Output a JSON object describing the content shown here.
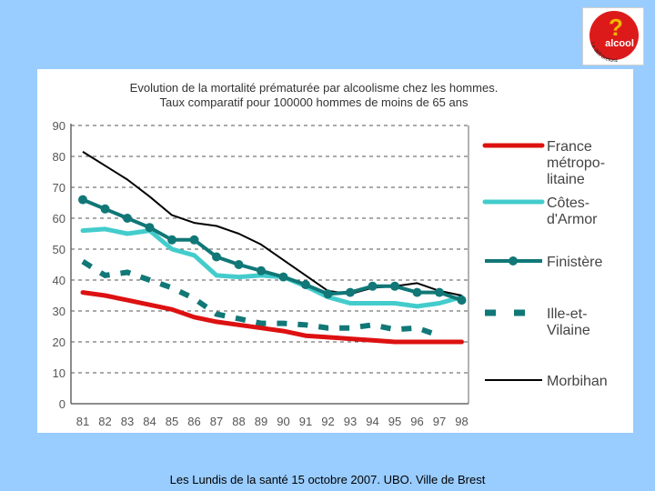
{
  "logo": {
    "text": "alcool",
    "question_mark": "?",
    "tagline": "Le défi bretonz"
  },
  "footer": "Les Lundis de la santé 15 octobre 2007. UBO. Ville de Brest",
  "chart_data": {
    "type": "line",
    "title": "Evolution de la mortalité prématurée par alcoolisme chez les hommes.",
    "subtitle": "Taux comparatif pour 100000 hommes de moins de 65 ans",
    "xlabel": "",
    "ylabel": "",
    "categories": [
      "81",
      "82",
      "83",
      "84",
      "85",
      "86",
      "87",
      "88",
      "89",
      "90",
      "91",
      "92",
      "93",
      "94",
      "95",
      "96",
      "97",
      "98"
    ],
    "yticks": [
      0,
      10,
      20,
      30,
      40,
      50,
      60,
      70,
      80,
      90
    ],
    "ylim": [
      0,
      90
    ],
    "grid": "horizontal dashed",
    "legend_position": "right",
    "series": [
      {
        "name": "France métropo-litaine",
        "legend_lines": [
          "France",
          "métropo-",
          "litaine"
        ],
        "color": "#dd1111",
        "style": "solid-thick",
        "values": [
          36,
          35,
          33.5,
          32,
          30.5,
          28,
          26.5,
          25.5,
          24.5,
          23.5,
          22,
          21.5,
          21,
          20.5,
          20,
          20,
          20,
          20
        ]
      },
      {
        "name": "Côtes-d'Armor",
        "legend_lines": [
          "Côtes-",
          "d'Armor"
        ],
        "color": "#44cccc",
        "style": "solid-thick",
        "values": [
          56,
          56.5,
          55,
          56,
          50,
          48,
          41.5,
          41,
          41.5,
          41,
          38,
          34.5,
          32.5,
          32.5,
          32.5,
          31.5,
          32.5,
          34.5
        ]
      },
      {
        "name": "Finistère",
        "legend_lines": [
          "Finistère"
        ],
        "color": "#117777",
        "style": "solid-markers",
        "values": [
          66,
          63,
          60,
          57,
          53,
          53,
          47.5,
          45,
          43,
          41,
          38.5,
          35.5,
          36,
          38,
          38,
          36,
          36,
          33.5
        ]
      },
      {
        "name": "Ille-et-Vilaine",
        "legend_lines": [
          "Ille-et-",
          "Vilaine"
        ],
        "color": "#117777",
        "style": "dashed-thick",
        "values": [
          46,
          41.5,
          42.5,
          40,
          37.5,
          34,
          29,
          27.5,
          26,
          26,
          25.5,
          24.5,
          24.5,
          25.5,
          24,
          24.5,
          22,
          null
        ]
      },
      {
        "name": "Morbihan",
        "legend_lines": [
          "Morbihan"
        ],
        "color": "#000000",
        "style": "solid-thin",
        "values": [
          81.5,
          77,
          72.5,
          67,
          61,
          58.5,
          57.5,
          55,
          51.5,
          46.5,
          41.5,
          36.5,
          35.5,
          37.5,
          38,
          39,
          36.5,
          35
        ]
      }
    ]
  }
}
